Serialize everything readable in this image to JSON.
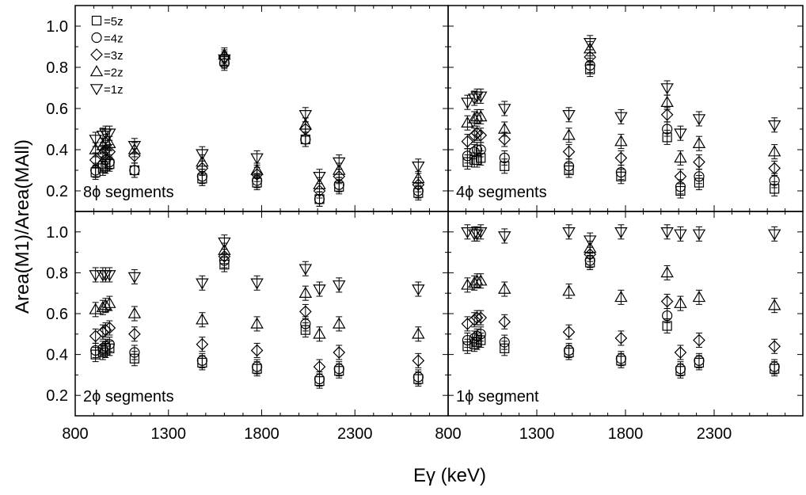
{
  "chart_data": {
    "type": "scatter",
    "xlabel": "Eγ (keV)",
    "ylabel": "Area(M1)/Area(MAll)",
    "xlim": [
      800,
      2800
    ],
    "ylim": [
      0.1,
      1.1
    ],
    "x_ticks": [
      "800",
      "1300",
      "1800",
      "2300"
    ],
    "x_ticks_right": [
      "800",
      "1300",
      "1800",
      "2300"
    ],
    "y_ticks": [
      "0.2",
      "0.4",
      "0.6",
      "0.8",
      "1.0"
    ],
    "grid": false,
    "legend_position": "top-left of upper-left panel",
    "legend": [
      {
        "marker": "square",
        "label": "=5z"
      },
      {
        "marker": "circle",
        "label": "=4z"
      },
      {
        "marker": "diamond",
        "label": "=3z"
      },
      {
        "marker": "triangle-up",
        "label": "=2z"
      },
      {
        "marker": "triangle-down",
        "label": "=1z"
      }
    ],
    "energies": [
      909,
      948,
      963,
      984,
      1118,
      1481,
      1600,
      1775,
      2035,
      2110,
      2215,
      2640
    ],
    "panels": [
      {
        "label": "8ϕ segments",
        "series": [
          {
            "marker": "square",
            "values": [
              0.29,
              0.31,
              0.32,
              0.33,
              0.3,
              0.26,
              0.83,
              0.24,
              0.45,
              0.16,
              0.22,
              0.19
            ]
          },
          {
            "marker": "circle",
            "values": [
              0.3,
              0.33,
              0.35,
              0.34,
              0.3,
              0.27,
              0.82,
              0.25,
              0.45,
              0.16,
              0.23,
              0.2
            ]
          },
          {
            "marker": "diamond",
            "values": [
              0.35,
              0.38,
              0.4,
              0.39,
              0.37,
              0.31,
              0.85,
              0.28,
              0.5,
              0.2,
              0.27,
              0.23
            ]
          },
          {
            "marker": "triangle-up",
            "values": [
              0.4,
              0.42,
              0.44,
              0.43,
              0.4,
              0.34,
              0.86,
              0.3,
              0.52,
              0.23,
              0.3,
              0.26
            ]
          },
          {
            "marker": "triangle-down",
            "values": [
              0.45,
              0.47,
              0.48,
              0.48,
              0.42,
              0.38,
              0.84,
              0.36,
              0.57,
              0.27,
              0.34,
              0.32
            ]
          }
        ]
      },
      {
        "label": "4ϕ segments",
        "series": [
          {
            "marker": "square",
            "values": [
              0.34,
              0.35,
              0.35,
              0.36,
              0.32,
              0.3,
              0.79,
              0.27,
              0.46,
              0.2,
              0.24,
              0.21
            ]
          },
          {
            "marker": "circle",
            "values": [
              0.37,
              0.39,
              0.4,
              0.4,
              0.36,
              0.32,
              0.81,
              0.29,
              0.5,
              0.22,
              0.27,
              0.25
            ]
          },
          {
            "marker": "diamond",
            "values": [
              0.44,
              0.47,
              0.48,
              0.47,
              0.45,
              0.39,
              0.85,
              0.36,
              0.57,
              0.27,
              0.34,
              0.31
            ]
          },
          {
            "marker": "triangle-up",
            "values": [
              0.53,
              0.55,
              0.56,
              0.56,
              0.5,
              0.47,
              0.89,
              0.44,
              0.63,
              0.36,
              0.43,
              0.39
            ]
          },
          {
            "marker": "triangle-down",
            "values": [
              0.63,
              0.65,
              0.66,
              0.66,
              0.6,
              0.57,
              0.92,
              0.56,
              0.7,
              0.48,
              0.55,
              0.52
            ]
          }
        ]
      },
      {
        "label": "2ϕ segments",
        "series": [
          {
            "marker": "square",
            "values": [
              0.4,
              0.41,
              0.42,
              0.43,
              0.38,
              0.36,
              0.84,
              0.33,
              0.52,
              0.27,
              0.32,
              0.28
            ]
          },
          {
            "marker": "circle",
            "values": [
              0.42,
              0.43,
              0.44,
              0.45,
              0.41,
              0.37,
              0.86,
              0.34,
              0.55,
              0.28,
              0.33,
              0.29
            ]
          },
          {
            "marker": "diamond",
            "values": [
              0.49,
              0.51,
              0.52,
              0.53,
              0.5,
              0.45,
              0.88,
              0.42,
              0.61,
              0.34,
              0.41,
              0.37
            ]
          },
          {
            "marker": "triangle-up",
            "values": [
              0.62,
              0.63,
              0.64,
              0.65,
              0.6,
              0.57,
              0.91,
              0.55,
              0.7,
              0.5,
              0.55,
              0.5
            ]
          },
          {
            "marker": "triangle-down",
            "values": [
              0.79,
              0.79,
              0.79,
              0.79,
              0.78,
              0.75,
              0.95,
              0.75,
              0.82,
              0.72,
              0.74,
              0.72
            ]
          }
        ]
      },
      {
        "label": "1ϕ segment",
        "series": [
          {
            "marker": "square",
            "values": [
              0.44,
              0.45,
              0.46,
              0.47,
              0.43,
              0.41,
              0.85,
              0.37,
              0.54,
              0.32,
              0.36,
              0.33
            ]
          },
          {
            "marker": "circle",
            "values": [
              0.47,
              0.48,
              0.49,
              0.5,
              0.46,
              0.42,
              0.86,
              0.38,
              0.59,
              0.33,
              0.37,
              0.34
            ]
          },
          {
            "marker": "diamond",
            "values": [
              0.55,
              0.57,
              0.58,
              0.58,
              0.56,
              0.51,
              0.89,
              0.48,
              0.66,
              0.41,
              0.47,
              0.44
            ]
          },
          {
            "marker": "triangle-up",
            "values": [
              0.74,
              0.75,
              0.76,
              0.76,
              0.72,
              0.71,
              0.92,
              0.68,
              0.8,
              0.65,
              0.68,
              0.64
            ]
          },
          {
            "marker": "triangle-down",
            "values": [
              1.0,
              0.99,
              0.99,
              1.0,
              0.98,
              1.0,
              0.96,
              1.0,
              1.0,
              0.99,
              0.99,
              0.99
            ]
          }
        ]
      }
    ]
  }
}
